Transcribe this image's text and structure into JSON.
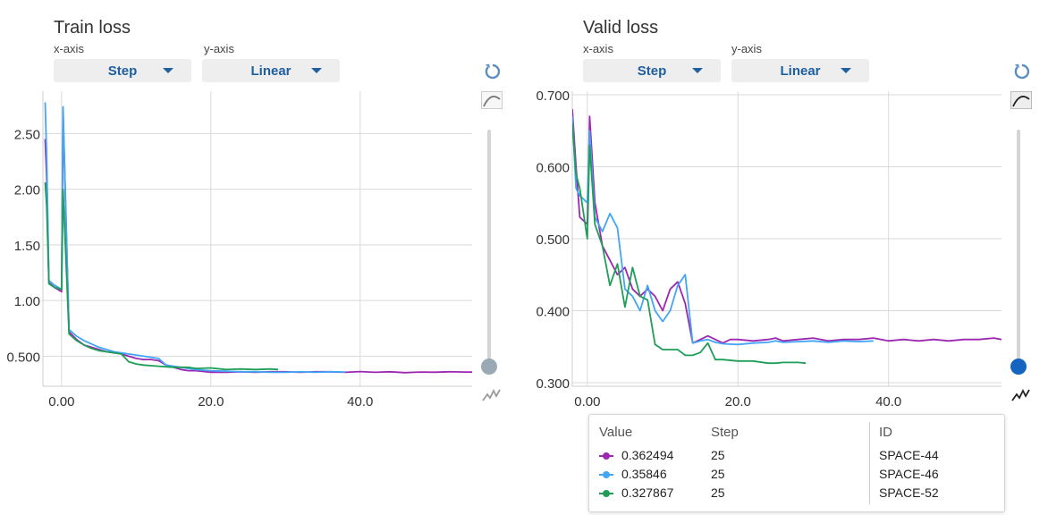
{
  "panels": [
    {
      "title": "Train loss",
      "xaxis_label": "x-axis",
      "xaxis_value": "Step",
      "yaxis_label": "y-axis",
      "yaxis_value": "Linear"
    },
    {
      "title": "Valid loss",
      "xaxis_label": "x-axis",
      "xaxis_value": "Step",
      "yaxis_label": "y-axis",
      "yaxis_value": "Linear"
    }
  ],
  "icons": [
    "reset-icon",
    "smooth-curve-icon",
    "raw-curve-icon"
  ],
  "smoothing": {
    "train": 0,
    "valid": 0
  },
  "tooltip": {
    "headers": {
      "value": "Value",
      "step": "Step",
      "id": "ID"
    },
    "rows": [
      {
        "value": "0.362494",
        "step": "25",
        "id": "SPACE-44",
        "color": "#9c27b0"
      },
      {
        "value": "0.35846",
        "step": "25",
        "id": "SPACE-46",
        "color": "#42a5f5"
      },
      {
        "value": "0.327867",
        "step": "25",
        "id": "SPACE-52",
        "color": "#1e9e57"
      }
    ]
  },
  "chart_data": [
    {
      "type": "line",
      "title": "Train loss",
      "xlim": [
        -2.5,
        55
      ],
      "ylim": [
        0.23,
        2.88
      ],
      "xticks": [
        {
          "v": 0,
          "label": "0.00"
        },
        {
          "v": 20,
          "label": "20.0"
        },
        {
          "v": 40,
          "label": "40.0"
        }
      ],
      "yticks": [
        {
          "v": 0.5,
          "label": "0.500"
        },
        {
          "v": 1.0,
          "label": "1.00"
        },
        {
          "v": 1.5,
          "label": "1.50"
        },
        {
          "v": 2.0,
          "label": "2.00"
        },
        {
          "v": 2.5,
          "label": "2.50"
        }
      ],
      "grid": true,
      "series": [
        {
          "name": "SPACE-44",
          "color": "#9c27b0",
          "x": [
            -2.2,
            -2,
            -1.7,
            -1,
            0,
            0.2,
            1,
            2,
            3,
            4,
            5,
            6,
            7,
            8,
            9,
            10,
            11,
            12,
            13,
            14,
            15,
            16,
            17,
            18,
            20,
            22,
            24,
            26,
            28,
            30,
            32,
            34,
            36,
            38,
            40,
            42,
            44,
            46,
            48,
            50,
            52,
            54,
            55
          ],
          "y": [
            2.45,
            2.1,
            1.16,
            1.12,
            1.08,
            2.7,
            0.72,
            0.65,
            0.6,
            0.58,
            0.56,
            0.54,
            0.53,
            0.52,
            0.5,
            0.48,
            0.47,
            0.47,
            0.46,
            0.42,
            0.4,
            0.38,
            0.37,
            0.37,
            0.355,
            0.355,
            0.36,
            0.355,
            0.36,
            0.36,
            0.355,
            0.36,
            0.36,
            0.355,
            0.362,
            0.355,
            0.36,
            0.352,
            0.358,
            0.356,
            0.36,
            0.358,
            0.357
          ]
        },
        {
          "name": "SPACE-46",
          "color": "#42a5f5",
          "x": [
            -2.2,
            -2,
            -1.7,
            -1,
            0,
            0.2,
            1,
            2,
            3,
            4,
            5,
            6,
            7,
            8,
            9,
            10,
            11,
            12,
            13,
            14,
            15,
            16,
            17,
            18,
            20,
            22,
            24,
            26,
            28,
            30,
            32,
            34,
            36,
            38
          ],
          "y": [
            2.78,
            2.3,
            1.18,
            1.14,
            1.1,
            2.74,
            0.74,
            0.68,
            0.64,
            0.61,
            0.58,
            0.56,
            0.54,
            0.53,
            0.52,
            0.51,
            0.5,
            0.49,
            0.48,
            0.42,
            0.41,
            0.4,
            0.39,
            0.38,
            0.37,
            0.365,
            0.36,
            0.36,
            0.355,
            0.355,
            0.36,
            0.355,
            0.36,
            0.358
          ]
        },
        {
          "name": "SPACE-52",
          "color": "#1e9e57",
          "x": [
            -2.2,
            -2,
            -1.7,
            -1,
            0,
            0.2,
            1,
            2,
            3,
            4,
            5,
            6,
            7,
            8,
            9,
            10,
            11,
            12,
            13,
            14,
            15,
            16,
            17,
            18,
            20,
            22,
            24,
            26,
            28,
            29
          ],
          "y": [
            2.06,
            1.85,
            1.15,
            1.12,
            1.1,
            2.0,
            0.7,
            0.64,
            0.6,
            0.57,
            0.55,
            0.54,
            0.53,
            0.52,
            0.45,
            0.43,
            0.42,
            0.415,
            0.41,
            0.405,
            0.4,
            0.4,
            0.4,
            0.39,
            0.395,
            0.38,
            0.385,
            0.38,
            0.385,
            0.38
          ]
        }
      ]
    },
    {
      "type": "line",
      "title": "Valid loss",
      "xlim": [
        -2,
        55
      ],
      "ylim": [
        0.295,
        0.705
      ],
      "xticks": [
        {
          "v": 0,
          "label": "0.00"
        },
        {
          "v": 20,
          "label": "20.0"
        },
        {
          "v": 40,
          "label": "40.0"
        }
      ],
      "yticks": [
        {
          "v": 0.3,
          "label": "0.300"
        },
        {
          "v": 0.4,
          "label": "0.400"
        },
        {
          "v": 0.5,
          "label": "0.500"
        },
        {
          "v": 0.6,
          "label": "0.600"
        },
        {
          "v": 0.7,
          "label": "0.700"
        }
      ],
      "grid": true,
      "series": [
        {
          "name": "SPACE-44",
          "color": "#9c27b0",
          "x": [
            -2,
            -1.5,
            -1,
            0,
            0.3,
            1,
            2,
            3,
            4,
            5,
            6,
            7,
            8,
            9,
            10,
            11,
            12,
            13,
            14,
            15,
            16,
            17,
            18,
            19,
            20,
            22,
            24,
            25,
            26,
            28,
            30,
            32,
            34,
            36,
            38,
            40,
            42,
            44,
            46,
            48,
            50,
            52,
            54,
            55
          ],
          "y": [
            0.68,
            0.6,
            0.53,
            0.52,
            0.67,
            0.55,
            0.49,
            0.47,
            0.45,
            0.46,
            0.43,
            0.42,
            0.43,
            0.42,
            0.4,
            0.43,
            0.44,
            0.41,
            0.355,
            0.36,
            0.365,
            0.36,
            0.355,
            0.36,
            0.36,
            0.358,
            0.36,
            0.362,
            0.358,
            0.36,
            0.362,
            0.358,
            0.36,
            0.36,
            0.362,
            0.358,
            0.36,
            0.358,
            0.36,
            0.358,
            0.36,
            0.36,
            0.362,
            0.36
          ]
        },
        {
          "name": "SPACE-46",
          "color": "#42a5f5",
          "x": [
            -2,
            -1.5,
            -1,
            0,
            0.3,
            1,
            2,
            3,
            4,
            5,
            6,
            7,
            8,
            9,
            10,
            11,
            12,
            13,
            14,
            15,
            16,
            17,
            18,
            20,
            22,
            24,
            25,
            26,
            28,
            30,
            32,
            34,
            36,
            38
          ],
          "y": [
            0.67,
            0.57,
            0.56,
            0.55,
            0.65,
            0.53,
            0.51,
            0.535,
            0.515,
            0.43,
            0.42,
            0.4,
            0.435,
            0.4,
            0.385,
            0.4,
            0.435,
            0.45,
            0.355,
            0.358,
            0.36,
            0.356,
            0.354,
            0.353,
            0.355,
            0.356,
            0.358,
            0.356,
            0.357,
            0.358,
            0.356,
            0.358,
            0.357,
            0.358
          ]
        },
        {
          "name": "SPACE-52",
          "color": "#1e9e57",
          "x": [
            -2,
            -1.5,
            -1,
            0,
            0.3,
            1,
            2,
            3,
            4,
            5,
            6,
            7,
            8,
            9,
            10,
            11,
            12,
            13,
            14,
            15,
            16,
            17,
            18,
            20,
            22,
            24,
            25,
            26,
            28,
            29
          ],
          "y": [
            0.66,
            0.59,
            0.57,
            0.5,
            0.63,
            0.52,
            0.49,
            0.435,
            0.465,
            0.405,
            0.46,
            0.42,
            0.415,
            0.353,
            0.346,
            0.346,
            0.346,
            0.338,
            0.338,
            0.342,
            0.355,
            0.332,
            0.332,
            0.33,
            0.33,
            0.327,
            0.327,
            0.328,
            0.328,
            0.327
          ]
        }
      ]
    }
  ]
}
